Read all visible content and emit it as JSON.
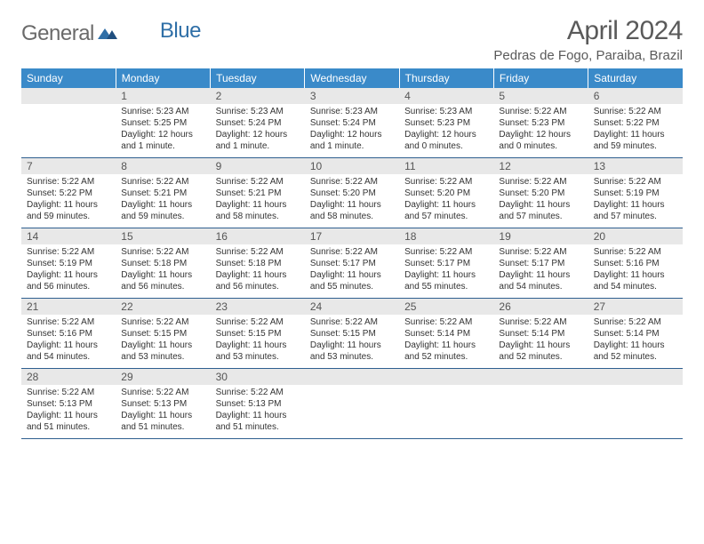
{
  "logo": {
    "text1": "General",
    "text2": "Blue"
  },
  "title": "April 2024",
  "location": "Pedras de Fogo, Paraiba, Brazil",
  "colors": {
    "header_band": "#3a8ac9",
    "daynum_bg": "#e8e8e8",
    "week_divider": "#2f5f8f",
    "logo_gray": "#6a6a6a",
    "logo_blue": "#2f6fa7",
    "text": "#333333"
  },
  "weekdays": [
    "Sunday",
    "Monday",
    "Tuesday",
    "Wednesday",
    "Thursday",
    "Friday",
    "Saturday"
  ],
  "start_weekday_index": 1,
  "days_in_month": 30,
  "days": {
    "1": {
      "sunrise": "5:23 AM",
      "sunset": "5:25 PM",
      "daylight": "12 hours and 1 minute."
    },
    "2": {
      "sunrise": "5:23 AM",
      "sunset": "5:24 PM",
      "daylight": "12 hours and 1 minute."
    },
    "3": {
      "sunrise": "5:23 AM",
      "sunset": "5:24 PM",
      "daylight": "12 hours and 1 minute."
    },
    "4": {
      "sunrise": "5:23 AM",
      "sunset": "5:23 PM",
      "daylight": "12 hours and 0 minutes."
    },
    "5": {
      "sunrise": "5:22 AM",
      "sunset": "5:23 PM",
      "daylight": "12 hours and 0 minutes."
    },
    "6": {
      "sunrise": "5:22 AM",
      "sunset": "5:22 PM",
      "daylight": "11 hours and 59 minutes."
    },
    "7": {
      "sunrise": "5:22 AM",
      "sunset": "5:22 PM",
      "daylight": "11 hours and 59 minutes."
    },
    "8": {
      "sunrise": "5:22 AM",
      "sunset": "5:21 PM",
      "daylight": "11 hours and 59 minutes."
    },
    "9": {
      "sunrise": "5:22 AM",
      "sunset": "5:21 PM",
      "daylight": "11 hours and 58 minutes."
    },
    "10": {
      "sunrise": "5:22 AM",
      "sunset": "5:20 PM",
      "daylight": "11 hours and 58 minutes."
    },
    "11": {
      "sunrise": "5:22 AM",
      "sunset": "5:20 PM",
      "daylight": "11 hours and 57 minutes."
    },
    "12": {
      "sunrise": "5:22 AM",
      "sunset": "5:20 PM",
      "daylight": "11 hours and 57 minutes."
    },
    "13": {
      "sunrise": "5:22 AM",
      "sunset": "5:19 PM",
      "daylight": "11 hours and 57 minutes."
    },
    "14": {
      "sunrise": "5:22 AM",
      "sunset": "5:19 PM",
      "daylight": "11 hours and 56 minutes."
    },
    "15": {
      "sunrise": "5:22 AM",
      "sunset": "5:18 PM",
      "daylight": "11 hours and 56 minutes."
    },
    "16": {
      "sunrise": "5:22 AM",
      "sunset": "5:18 PM",
      "daylight": "11 hours and 56 minutes."
    },
    "17": {
      "sunrise": "5:22 AM",
      "sunset": "5:17 PM",
      "daylight": "11 hours and 55 minutes."
    },
    "18": {
      "sunrise": "5:22 AM",
      "sunset": "5:17 PM",
      "daylight": "11 hours and 55 minutes."
    },
    "19": {
      "sunrise": "5:22 AM",
      "sunset": "5:17 PM",
      "daylight": "11 hours and 54 minutes."
    },
    "20": {
      "sunrise": "5:22 AM",
      "sunset": "5:16 PM",
      "daylight": "11 hours and 54 minutes."
    },
    "21": {
      "sunrise": "5:22 AM",
      "sunset": "5:16 PM",
      "daylight": "11 hours and 54 minutes."
    },
    "22": {
      "sunrise": "5:22 AM",
      "sunset": "5:15 PM",
      "daylight": "11 hours and 53 minutes."
    },
    "23": {
      "sunrise": "5:22 AM",
      "sunset": "5:15 PM",
      "daylight": "11 hours and 53 minutes."
    },
    "24": {
      "sunrise": "5:22 AM",
      "sunset": "5:15 PM",
      "daylight": "11 hours and 53 minutes."
    },
    "25": {
      "sunrise": "5:22 AM",
      "sunset": "5:14 PM",
      "daylight": "11 hours and 52 minutes."
    },
    "26": {
      "sunrise": "5:22 AM",
      "sunset": "5:14 PM",
      "daylight": "11 hours and 52 minutes."
    },
    "27": {
      "sunrise": "5:22 AM",
      "sunset": "5:14 PM",
      "daylight": "11 hours and 52 minutes."
    },
    "28": {
      "sunrise": "5:22 AM",
      "sunset": "5:13 PM",
      "daylight": "11 hours and 51 minutes."
    },
    "29": {
      "sunrise": "5:22 AM",
      "sunset": "5:13 PM",
      "daylight": "11 hours and 51 minutes."
    },
    "30": {
      "sunrise": "5:22 AM",
      "sunset": "5:13 PM",
      "daylight": "11 hours and 51 minutes."
    }
  },
  "labels": {
    "sunrise": "Sunrise: ",
    "sunset": "Sunset: ",
    "daylight": "Daylight: "
  }
}
